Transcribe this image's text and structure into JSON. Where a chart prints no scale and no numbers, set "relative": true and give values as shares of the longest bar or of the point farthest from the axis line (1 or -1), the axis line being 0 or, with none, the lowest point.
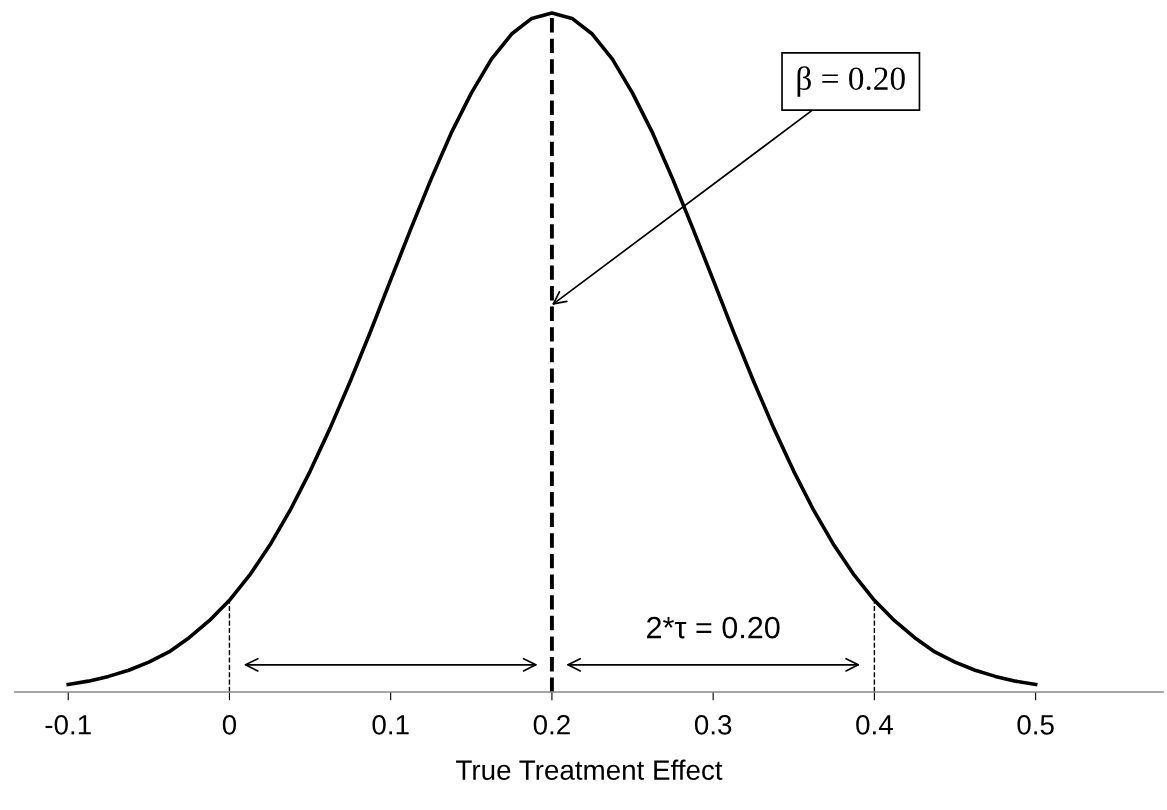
{
  "chart_data": {
    "type": "line",
    "relative": true,
    "xlabel": "True Treatment Effect",
    "x": [
      -0.1,
      -0.0875,
      -0.075,
      -0.0625,
      -0.05,
      -0.0375,
      -0.025,
      -0.0125,
      0,
      0.0125,
      0.025,
      0.0375,
      0.05,
      0.0625,
      0.075,
      0.0875,
      0.1,
      0.1125,
      0.125,
      0.1375,
      0.15,
      0.1625,
      0.175,
      0.1875,
      0.2,
      0.2125,
      0.225,
      0.2375,
      0.25,
      0.2625,
      0.275,
      0.2875,
      0.3,
      0.3125,
      0.325,
      0.3375,
      0.35,
      0.3625,
      0.375,
      0.3875,
      0.4,
      0.4125,
      0.425,
      0.4375,
      0.45,
      0.4625,
      0.475,
      0.4875,
      0.5
    ],
    "series": [
      {
        "color": "#000000",
        "values": [
          0.011,
          0.016,
          0.023,
          0.032,
          0.044,
          0.059,
          0.08,
          0.105,
          0.135,
          0.172,
          0.216,
          0.267,
          0.325,
          0.389,
          0.458,
          0.531,
          0.607,
          0.682,
          0.755,
          0.823,
          0.882,
          0.932,
          0.969,
          0.992,
          1,
          0.992,
          0.969,
          0.932,
          0.882,
          0.823,
          0.755,
          0.682,
          0.607,
          0.531,
          0.458,
          0.389,
          0.325,
          0.267,
          0.216,
          0.172,
          0.135,
          0.105,
          0.08,
          0.059,
          0.044,
          0.032,
          0.023,
          0.016,
          0.011
        ]
      }
    ],
    "xlim": [
      -0.133,
      0.579
    ],
    "xticks": [
      -0.1,
      0,
      0.1,
      0.2,
      0.3,
      0.4,
      0.5
    ],
    "ref_lines": [
      {
        "axis": "x",
        "value": 0,
        "line_style": "dashed"
      },
      {
        "axis": "x",
        "value": 0.2,
        "line_style": "dashed"
      },
      {
        "axis": "x",
        "value": 0.4,
        "line_style": "dashed"
      }
    ],
    "annotations": [
      {
        "text": "β = 0.20",
        "x": 0.2,
        "y": 0.57
      },
      "2*τ = 0.20"
    ],
    "grid": false,
    "legend": false,
    "marker": "none",
    "line_style": "solid"
  }
}
